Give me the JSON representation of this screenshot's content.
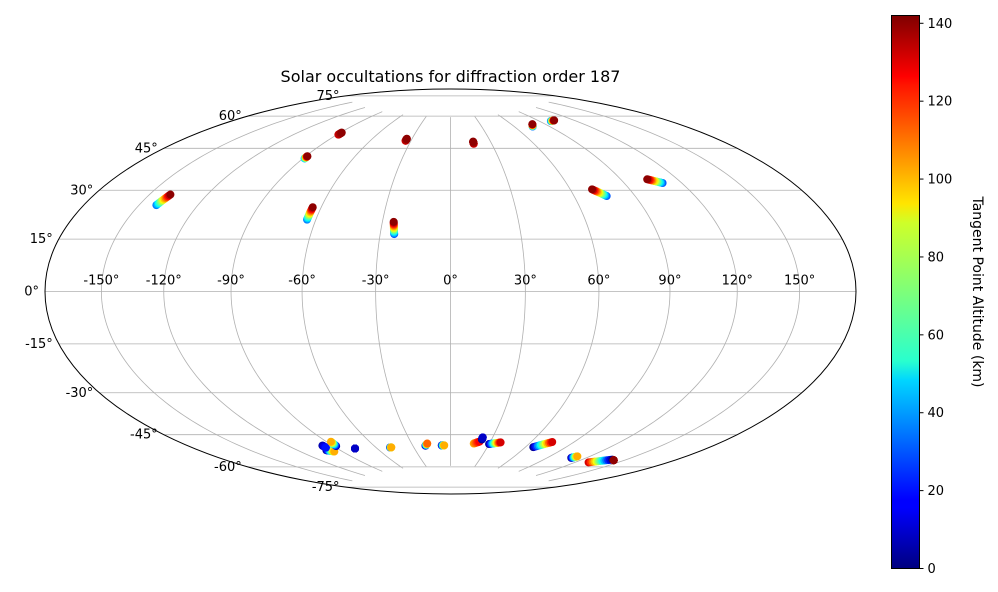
{
  "chart_data": {
    "type": "scatter",
    "projection": "hammer",
    "title": "Solar occultations for diffraction order 187",
    "xticks": [
      "-150°",
      "-120°",
      "-90°",
      "-60°",
      "-30°",
      "0°",
      "30°",
      "60°",
      "90°",
      "120°",
      "150°"
    ],
    "xtick_values": [
      -150,
      -120,
      -90,
      -60,
      -30,
      0,
      30,
      60,
      90,
      120,
      150
    ],
    "yticks": [
      "75°",
      "60°",
      "45°",
      "30°",
      "15°",
      "0°",
      "-15°",
      "-30°",
      "-45°",
      "-60°",
      "-75°"
    ],
    "ytick_values": [
      75,
      60,
      45,
      30,
      15,
      0,
      -15,
      -30,
      -45,
      -60,
      -75
    ],
    "grid": true,
    "colorbar": {
      "label": "Tangent Point Altitude (km)",
      "colormap": "jet",
      "range": [
        0,
        142
      ],
      "ticks": [
        "0",
        "20",
        "40",
        "60",
        "80",
        "100",
        "120",
        "140"
      ],
      "tick_values": [
        0,
        20,
        40,
        60,
        80,
        100,
        120,
        140
      ]
    },
    "occultations": [
      {
        "lon_start": -141,
        "lat_start": 29,
        "lon_end": -139,
        "lat_end": 33,
        "alt_start": 35,
        "alt_end": 140
      },
      {
        "lon_start": -89,
        "lat_start": 52,
        "lon_end": -89,
        "lat_end": 53,
        "alt_start": 40,
        "alt_end": 140
      },
      {
        "lon_start": -89,
        "lat_start": 63,
        "lon_end": -89,
        "lat_end": 64,
        "alt_start": 130,
        "alt_end": 140
      },
      {
        "lon_start": -64,
        "lat_start": 28,
        "lon_end": -64,
        "lat_end": 33,
        "alt_start": 35,
        "alt_end": 140
      },
      {
        "lon_start": -34,
        "lat_start": 63,
        "lon_end": -34,
        "lat_end": 64,
        "alt_start": 130,
        "alt_end": 140
      },
      {
        "lon_start": -24,
        "lat_start": 23,
        "lon_end": -25,
        "lat_end": 28,
        "alt_start": 30,
        "alt_end": 140
      },
      {
        "lon_start": 17,
        "lat_start": 62,
        "lon_end": 17,
        "lat_end": 63,
        "alt_start": 130,
        "alt_end": 140
      },
      {
        "lon_start": 76,
        "lat_start": 68,
        "lon_end": 79,
        "lat_end": 69,
        "alt_start": 30,
        "alt_end": 140
      },
      {
        "lon_start": 100,
        "lat_start": 69,
        "lon_end": 104,
        "lat_end": 69,
        "alt_start": 30,
        "alt_end": 140
      },
      {
        "lon_start": 76,
        "lat_start": 37,
        "lon_end": 71,
        "lat_end": 40,
        "alt_start": 30,
        "alt_end": 140
      },
      {
        "lon_start": 110,
        "lat_start": 40,
        "lon_end": 104,
        "lat_end": 42,
        "alt_start": 30,
        "alt_end": 140
      },
      {
        "lon_start": -100,
        "lat_start": -63,
        "lon_end": -96,
        "lat_end": -64,
        "alt_start": 2,
        "alt_end": 100
      },
      {
        "lon_start": -97,
        "lat_start": -61,
        "lon_end": -97,
        "lat_end": -62,
        "alt_start": 5,
        "alt_end": 20
      },
      {
        "lon_start": -88,
        "lat_start": -62,
        "lon_end": -87,
        "lat_end": -60,
        "alt_start": 5,
        "alt_end": 100
      },
      {
        "lon_start": -77,
        "lat_start": -64,
        "lon_end": -77,
        "lat_end": -64,
        "alt_start": 5,
        "alt_end": 10
      },
      {
        "lon_start": -49,
        "lat_start": -65,
        "lon_end": -48,
        "lat_end": -65,
        "alt_start": 2,
        "alt_end": 100
      },
      {
        "lon_start": -20,
        "lat_start": -65,
        "lon_end": -18,
        "lat_end": -64,
        "alt_start": 2,
        "alt_end": 110
      },
      {
        "lon_start": -7,
        "lat_start": -65,
        "lon_end": -5,
        "lat_end": -65,
        "alt_start": 2,
        "alt_end": 100
      },
      {
        "lon_start": 18,
        "lat_start": -64,
        "lon_end": 22,
        "lat_end": -63,
        "alt_start": 100,
        "alt_end": 125
      },
      {
        "lon_start": 23,
        "lat_start": -62,
        "lon_end": 23,
        "lat_end": -61,
        "alt_start": 2,
        "alt_end": 10
      },
      {
        "lon_start": 30,
        "lat_start": -64,
        "lon_end": 38,
        "lat_end": -63,
        "alt_start": 2,
        "alt_end": 130
      },
      {
        "lon_start": 66,
        "lat_start": -64,
        "lon_end": 75,
        "lat_end": -61,
        "alt_start": 2,
        "alt_end": 130
      },
      {
        "lon_start": 109,
        "lat_start": -66,
        "lon_end": 111,
        "lat_end": -65,
        "alt_start": 2,
        "alt_end": 100
      },
      {
        "lon_start": 130,
        "lat_start": -66,
        "lon_end": 141,
        "lat_end": -63,
        "alt_start": 130,
        "alt_end": 2
      },
      {
        "lon_start": 143,
        "lat_start": -63,
        "lon_end": 143,
        "lat_end": -63,
        "alt_start": 130,
        "alt_end": 140
      }
    ]
  }
}
